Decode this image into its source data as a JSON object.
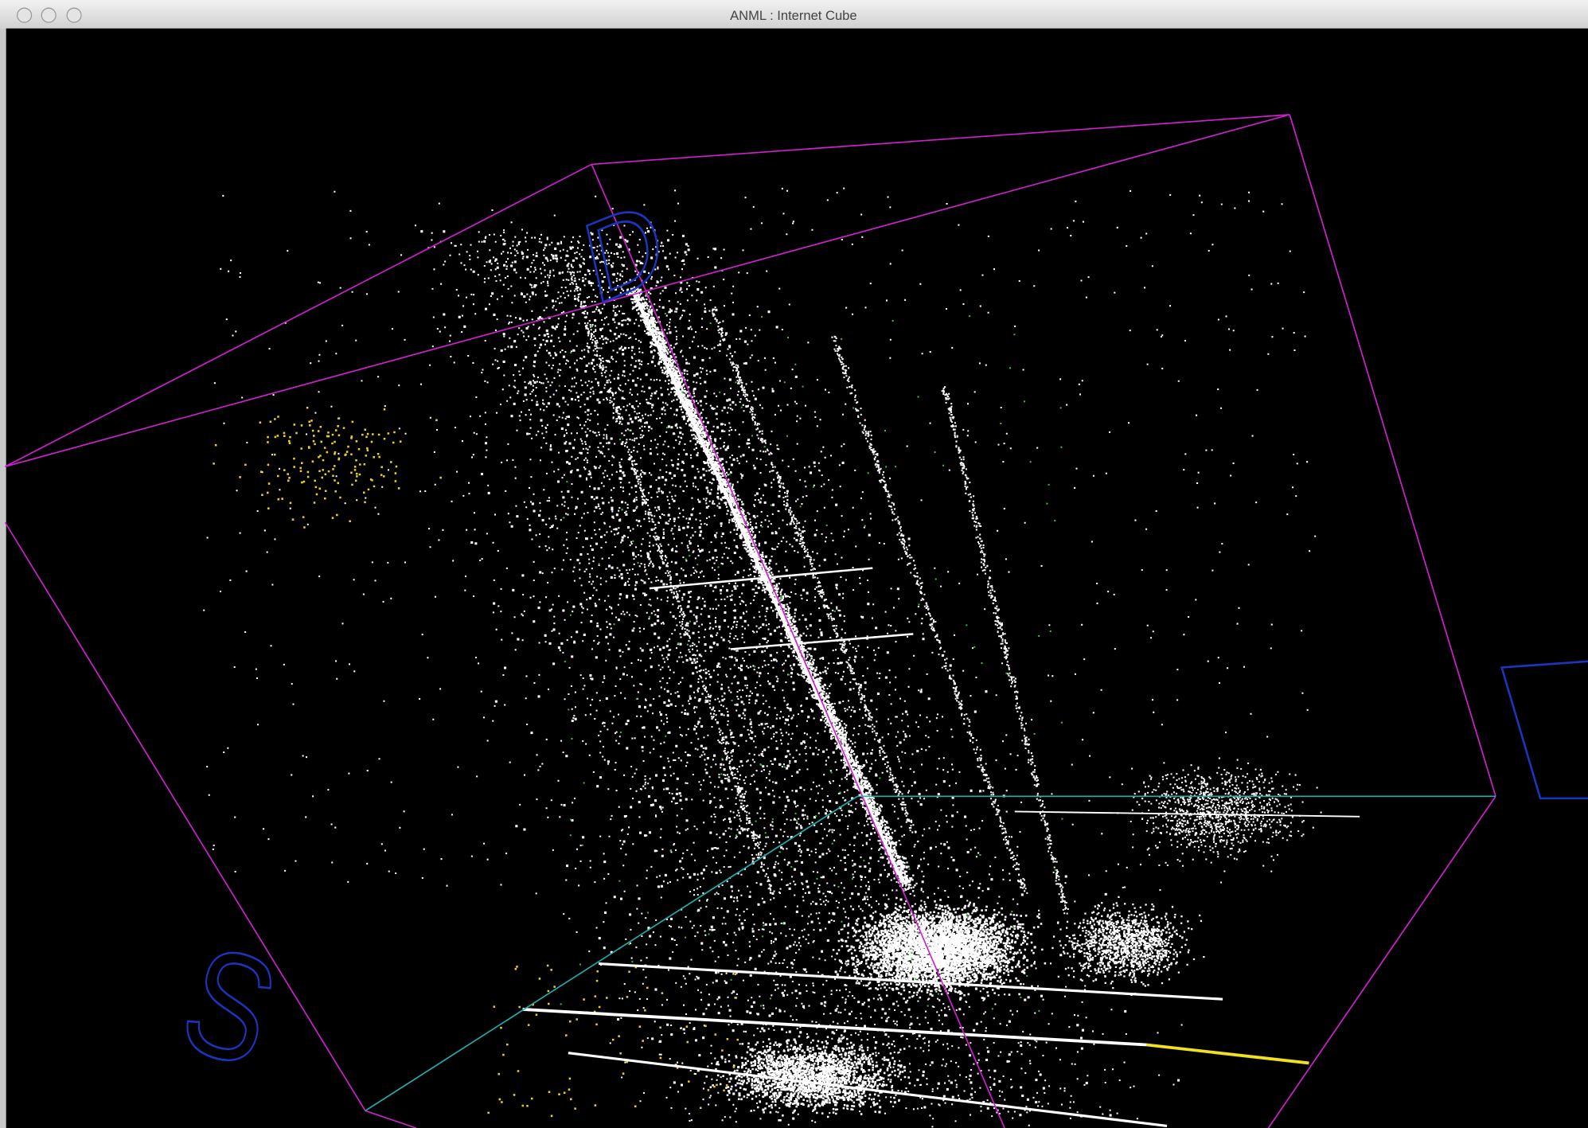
{
  "window": {
    "title": "ANML : Internet Cube"
  },
  "labels": [
    "D",
    "S"
  ]
}
